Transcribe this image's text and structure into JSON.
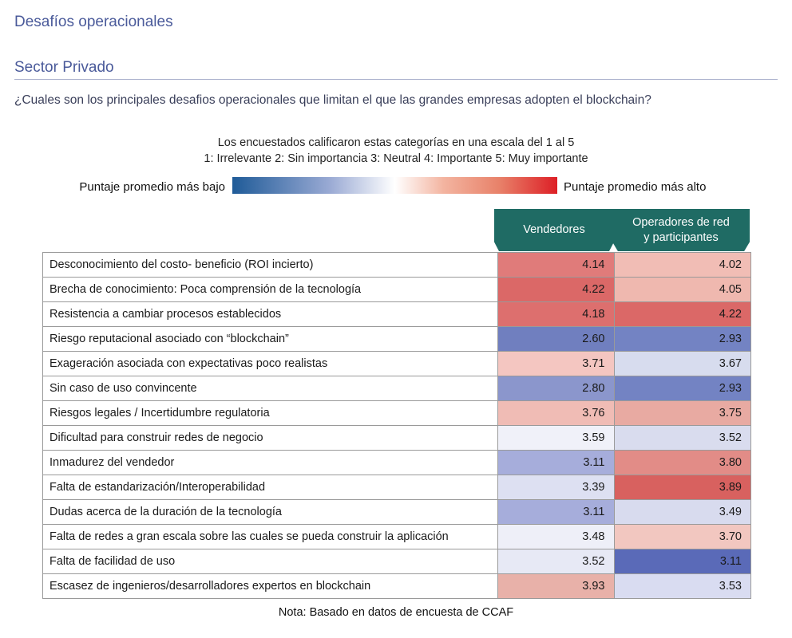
{
  "header": {
    "title": "Desafíos operacionales",
    "section": "Sector Privado",
    "question": "¿Cuales son los principales desafios operacionales que limitan el que las grandes empresas adopten el blockchain?"
  },
  "scale": {
    "line1": "Los encuestados calificaron estas categorías en una escala del 1 al 5",
    "line2": "1: Irrelevante   2: Sin importancia   3: Neutral   4: Importante   5: Muy importante",
    "low_label": "Puntaje promedio más bajo",
    "high_label": "Puntaje promedio más alto",
    "colors": {
      "low": "#1f5b98",
      "mid": "#ffffff",
      "high": "#dd1f26"
    }
  },
  "chart_data": {
    "type": "heatmap",
    "columns": [
      "Vendedores",
      "Operadores de red y participantes"
    ],
    "rows": [
      "Desconocimiento del costo- beneficio (ROI incierto)",
      "Brecha de conocimiento: Poca comprensión de la tecnología",
      "Resistencia a cambiar procesos establecidos",
      "Riesgo reputacional asociado con “blockchain”",
      "Exageración asociada con expectativas poco realistas",
      "Sin caso de uso convincente",
      "Riesgos legales / Incertidumbre regulatoria",
      "Dificultad para construir redes de negocio",
      "Inmadurez del vendedor",
      "Falta de estandarización/Interoperabilidad",
      "Dudas acerca de la duración de la tecnología",
      "Falta de redes a gran escala sobre las cuales se pueda construir la aplicación",
      "Falta de facilidad de uso",
      "Escasez de ingenieros/desarrolladores expertos en blockchain"
    ],
    "values": [
      [
        4.14,
        4.02
      ],
      [
        4.22,
        4.05
      ],
      [
        4.18,
        4.22
      ],
      [
        2.6,
        2.93
      ],
      [
        3.71,
        3.67
      ],
      [
        2.8,
        2.93
      ],
      [
        3.76,
        3.75
      ],
      [
        3.59,
        3.52
      ],
      [
        3.11,
        3.8
      ],
      [
        3.39,
        3.89
      ],
      [
        3.11,
        3.49
      ],
      [
        3.48,
        3.7
      ],
      [
        3.52,
        3.11
      ],
      [
        3.93,
        3.53
      ]
    ],
    "cell_colors": [
      [
        "#e07b7a",
        "#f1bdb5"
      ],
      [
        "#db6867",
        "#efb8af"
      ],
      [
        "#dd6f6e",
        "#db6867"
      ],
      [
        "#707fbf",
        "#7383c3"
      ],
      [
        "#f4c6c1",
        "#d7dcee"
      ],
      [
        "#8b96cc",
        "#7383c3"
      ],
      [
        "#f0bcb5",
        "#e8aaa2"
      ],
      [
        "#f0f1f9",
        "#d9dcee"
      ],
      [
        "#a6addb",
        "#e28c87"
      ],
      [
        "#dde0f2",
        "#d8615f"
      ],
      [
        "#a6addb",
        "#d8dbee"
      ],
      [
        "#eeeff8",
        "#f2c7c0"
      ],
      [
        "#e7e9f5",
        "#5a6ab8"
      ],
      [
        "#e8b1a9",
        "#d9dcf1"
      ]
    ]
  },
  "note": "Nota: Basado en datos de encuesta de CCAF"
}
